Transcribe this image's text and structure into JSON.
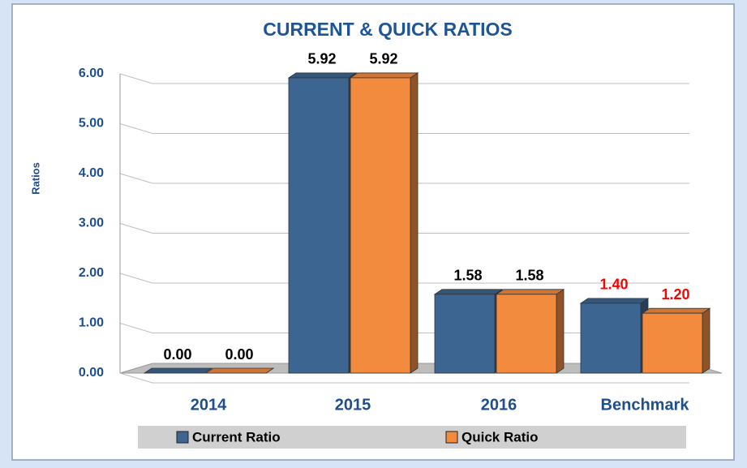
{
  "chart_data": {
    "type": "bar3d",
    "title": "CURRENT & QUICK RATIOS",
    "ylabel": "Ratios",
    "categories": [
      "2014",
      "2015",
      "2016",
      "Benchmark"
    ],
    "series": [
      {
        "name": "Current Ratio",
        "color": "#3d6591",
        "values": [
          0,
          5.92,
          1.58,
          1.4
        ],
        "value_labels": [
          "0.00",
          "5.92",
          "1.58",
          "1.40"
        ],
        "value_label_colors": [
          "#000000",
          "#000000",
          "#000000",
          "#ff0000"
        ]
      },
      {
        "name": "Quick Ratio",
        "color": "#f28b3e",
        "values": [
          0,
          5.92,
          1.58,
          1.2
        ],
        "value_labels": [
          "0.00",
          "5.92",
          "1.58",
          "1.20"
        ],
        "value_label_colors": [
          "#000000",
          "#000000",
          "#000000",
          "#ff0000"
        ]
      }
    ],
    "ylim": [
      0,
      6
    ],
    "yticks": [
      {
        "value": 0,
        "label": "0.00"
      },
      {
        "value": 1,
        "label": "1.00"
      },
      {
        "value": 2,
        "label": "2.00"
      },
      {
        "value": 3,
        "label": "3.00"
      },
      {
        "value": 4,
        "label": "4.00"
      },
      {
        "value": 5,
        "label": "5.00"
      },
      {
        "value": 6,
        "label": "6.00"
      }
    ],
    "grid": true
  }
}
